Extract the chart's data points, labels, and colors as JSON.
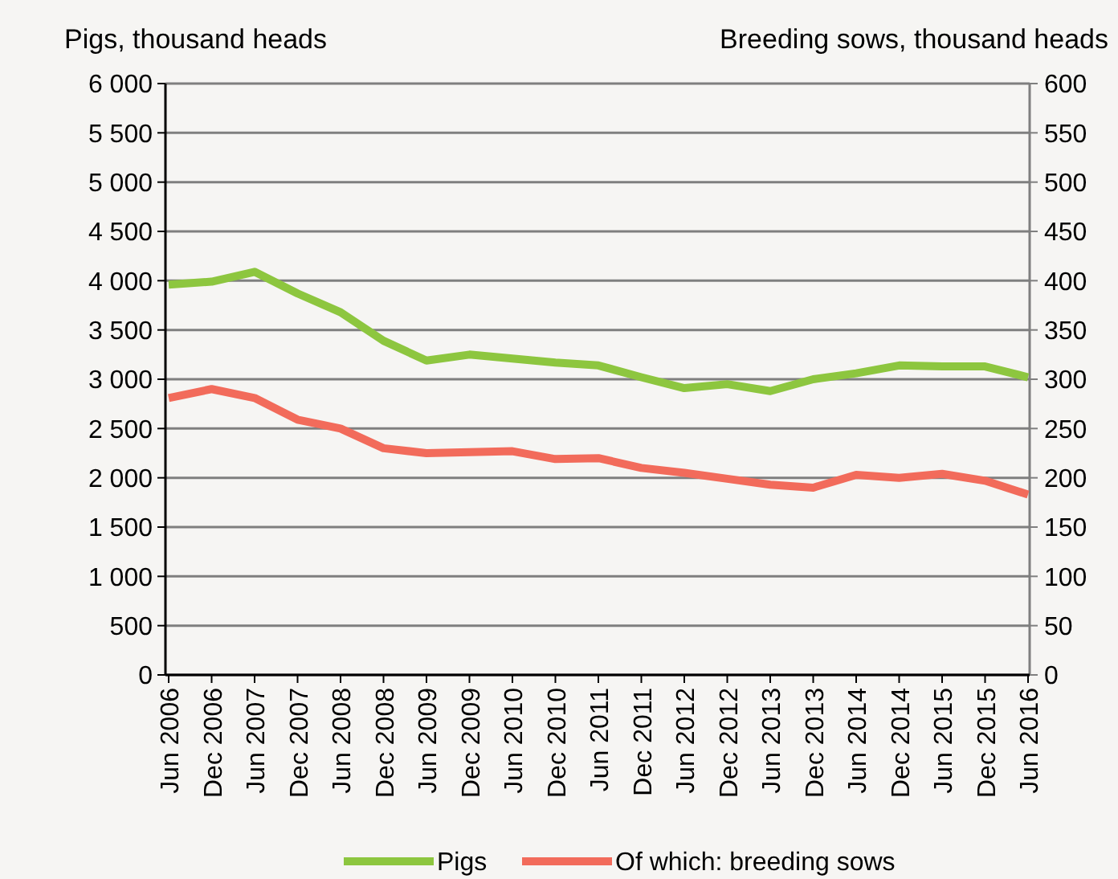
{
  "chart_data": {
    "type": "line",
    "ylabel": "Pigs, thousand heads",
    "y2label": "Breeding sows, thousand heads",
    "categories": [
      "Jun 2006",
      "Dec 2006",
      "Jun 2007",
      "Dec 2007",
      "Jun 2008",
      "Dec 2008",
      "Jun 2009",
      "Dec 2009",
      "Jun 2010",
      "Dec 2010",
      "Jun 2011",
      "Dec 2011",
      "Jun 2012",
      "Dec 2012",
      "Jun 2013",
      "Dec 2013",
      "Jun 2014",
      "Dec 2014",
      "Jun 2015",
      "Dec 2015",
      "Jun 2016"
    ],
    "series": [
      {
        "name": "Pigs",
        "color": "#8dc63f",
        "values": [
          3960,
          3990,
          4090,
          3870,
          3680,
          3390,
          3190,
          3250,
          3210,
          3170,
          3140,
          3020,
          2910,
          2950,
          2880,
          3000,
          3060,
          3140,
          3130,
          3130,
          3020
        ]
      },
      {
        "name": "Of which: breeding sows",
        "color": "#f26b5b",
        "axis": "y2",
        "values": [
          281,
          290,
          281,
          259,
          250,
          230,
          225,
          226,
          227,
          219,
          220,
          210,
          205,
          199,
          193,
          190,
          203,
          200,
          204,
          197,
          183
        ]
      }
    ],
    "ylim": [
      0,
      6000
    ],
    "yticks": [
      0,
      {
        "value": 500,
        "label": "500"
      },
      {
        "value": 1000,
        "label": "1 000"
      },
      {
        "value": 1500,
        "label": "1 500"
      },
      {
        "value": 2000,
        "label": "2 000"
      },
      {
        "value": 2500,
        "label": "2 500"
      },
      {
        "value": 3000,
        "label": "3 000"
      },
      {
        "value": 3500,
        "label": "3 500"
      },
      {
        "value": 4000,
        "label": "4 000"
      },
      {
        "value": 4500,
        "label": "4 500"
      },
      {
        "value": 5000,
        "label": "5 000"
      },
      {
        "value": 5500,
        "label": "5 500"
      },
      {
        "value": 6000,
        "label": "6 000"
      }
    ],
    "y2lim": [
      0,
      600
    ],
    "y2ticks": [
      0,
      50,
      100,
      150,
      200,
      250,
      300,
      350,
      400,
      450,
      500,
      550,
      600
    ],
    "grid": "y",
    "legend": "bottom",
    "line_style": "solid"
  }
}
